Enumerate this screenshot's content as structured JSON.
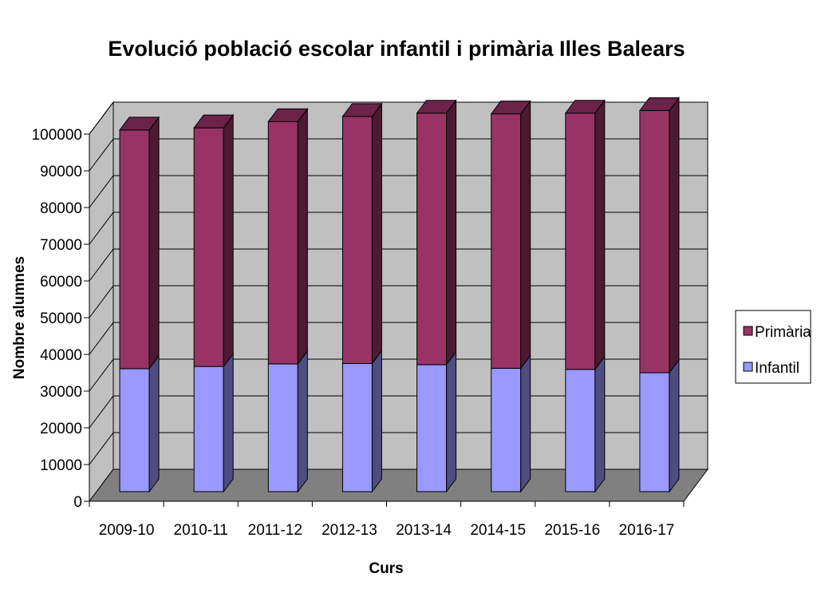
{
  "chart_data": {
    "type": "bar",
    "stacked": true,
    "three_d": true,
    "title": "Evolució població escolar infantil i primària Illes Balears",
    "xlabel": "Curs",
    "ylabel": "Nombre alumnes",
    "ylim": [
      0,
      100000
    ],
    "y_ticks": [
      "0",
      "10000",
      "20000",
      "30000",
      "40000",
      "50000",
      "60000",
      "70000",
      "80000",
      "90000",
      "100000"
    ],
    "grid": true,
    "legend_position": "right",
    "categories": [
      "2009-10",
      "2010-11",
      "2011-12",
      "2012-13",
      "2013-14",
      "2014-15",
      "2015-16",
      "2016-17"
    ],
    "series": [
      {
        "name": "Infantil",
        "color": "#9999ff",
        "values": [
          33500,
          34100,
          34800,
          34900,
          34600,
          33600,
          33300,
          32400
        ]
      },
      {
        "name": "Primària",
        "color": "#993366",
        "values": [
          65000,
          65000,
          66000,
          67300,
          68500,
          69300,
          69800,
          71400
        ]
      }
    ],
    "colors": {
      "wall": "#c0c0c0",
      "floor": "#808080",
      "gridline": "#000000"
    }
  }
}
